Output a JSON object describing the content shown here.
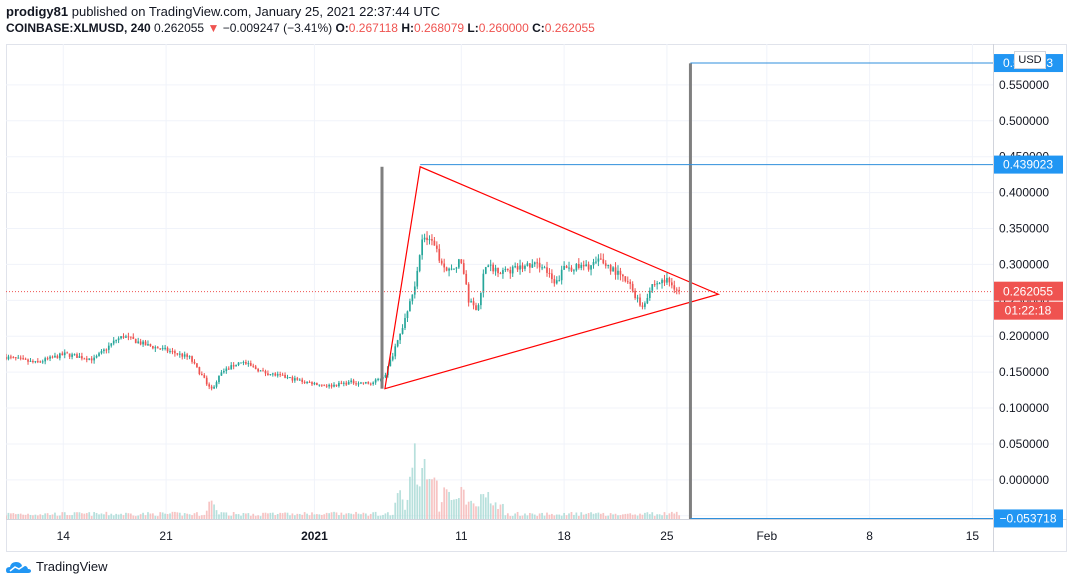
{
  "header": {
    "author": "prodigy81",
    "published_text": " published on TradingView.com, January 25, 2021 22:37:44 UTC",
    "symbol": "COINBASE:XLMUSD, 240",
    "last": "0.262055",
    "arrow": "▼",
    "change": "−0.009247 (−3.41%)",
    "o_label": "O:",
    "o_val": "0.267118",
    "h_label": "H:",
    "h_val": "0.268079",
    "l_label": "L:",
    "l_val": "0.260000",
    "c_label": "C:",
    "c_val": "0.262055"
  },
  "currency_button": "USD",
  "footer": {
    "brand": "TradingView"
  },
  "colors": {
    "up": "#26a69a",
    "down": "#ef5350",
    "triangle": "#ff0000",
    "range_line": "#2f8fdc",
    "price_tag": "#ef5350",
    "level_tag": "#2196f3",
    "vertical_bar": "#7f7f7f",
    "grid": "#f0f3fa"
  },
  "chart_data": {
    "type": "candlestick",
    "y_ticks": [
      "0.550000",
      "0.500000",
      "0.450000",
      "0.400000",
      "0.350000",
      "0.300000",
      "0.250000",
      "0.200000",
      "0.150000",
      "0.100000",
      "0.050000",
      "0.000000",
      "-0.050000"
    ],
    "ylim": [
      -0.0545,
      0.6
    ],
    "x_ticks": [
      {
        "label": "14",
        "t": 0.9
      },
      {
        "label": "21",
        "t": 7.9
      },
      {
        "label": "2021",
        "t": 18
      },
      {
        "label": "11",
        "t": 28
      },
      {
        "label": "18",
        "t": 35
      },
      {
        "label": "25",
        "t": 42
      },
      {
        "label": "Feb",
        "t": 48.8
      },
      {
        "label": "8",
        "t": 55.8
      },
      {
        "label": "15",
        "t": 62.8
      }
    ],
    "xlim": [
      -3,
      64.2
    ],
    "close_path": [
      [
        -3.0,
        0.171
      ],
      [
        -1.0,
        0.163
      ],
      [
        1.0,
        0.175
      ],
      [
        3.0,
        0.168
      ],
      [
        4.5,
        0.195
      ],
      [
        5.0,
        0.2
      ],
      [
        6.5,
        0.188
      ],
      [
        8.0,
        0.18
      ],
      [
        9.5,
        0.17
      ],
      [
        10.5,
        0.14
      ],
      [
        11.0,
        0.126
      ],
      [
        11.7,
        0.15
      ],
      [
        13.0,
        0.165
      ],
      [
        14.5,
        0.15
      ],
      [
        16.0,
        0.143
      ],
      [
        17.5,
        0.136
      ],
      [
        19.0,
        0.131
      ],
      [
        20.5,
        0.136
      ],
      [
        21.9,
        0.134
      ],
      [
        22.8,
        0.146
      ],
      [
        23.8,
        0.2
      ],
      [
        24.8,
        0.27
      ],
      [
        25.4,
        0.34
      ],
      [
        26.0,
        0.33
      ],
      [
        27.0,
        0.29
      ],
      [
        28.0,
        0.305
      ],
      [
        28.5,
        0.25
      ],
      [
        29.1,
        0.235
      ],
      [
        29.6,
        0.298
      ],
      [
        31.0,
        0.29
      ],
      [
        32.5,
        0.298
      ],
      [
        33.5,
        0.3
      ],
      [
        34.4,
        0.27
      ],
      [
        35.0,
        0.296
      ],
      [
        36.5,
        0.296
      ],
      [
        37.5,
        0.305
      ],
      [
        38.5,
        0.29
      ],
      [
        39.5,
        0.27
      ],
      [
        40.3,
        0.24
      ],
      [
        41.0,
        0.272
      ],
      [
        42.0,
        0.278
      ],
      [
        42.9,
        0.262
      ]
    ],
    "candle_range": [
      -3.0,
      42.9
    ],
    "candles_per_day": 6,
    "volume_peaks": [
      [
        24.8,
        0.108
      ],
      [
        25.4,
        0.095
      ],
      [
        26.0,
        0.082
      ],
      [
        27.0,
        0.058
      ],
      [
        28.0,
        0.042
      ],
      [
        11.0,
        0.04
      ],
      [
        23.8,
        0.032
      ],
      [
        29.6,
        0.034
      ]
    ],
    "volume_base": -0.0545,
    "triangle": {
      "p1": [
        22.8,
        0.127
      ],
      "p2": [
        25.2,
        0.436
      ],
      "apex": [
        45.5,
        0.2585
      ]
    },
    "vertical_bars": [
      {
        "t": 22.6,
        "y_top": 0.436,
        "y_bottom": 0.127
      },
      {
        "t": 43.6,
        "y_top": 0.58,
        "y_bottom": -0.0545
      }
    ],
    "ranges": [
      {
        "from_t": 43.6,
        "level": 0.580443,
        "label": "0.580443"
      },
      {
        "from_t": 25.2,
        "level": 0.439023,
        "label": "0.439023"
      },
      {
        "from_t": 43.6,
        "level": -0.053718,
        "label": "−0.053718"
      }
    ],
    "last_price": {
      "value": 0.262055,
      "label": "0.262055",
      "countdown": "01:22:18"
    }
  }
}
